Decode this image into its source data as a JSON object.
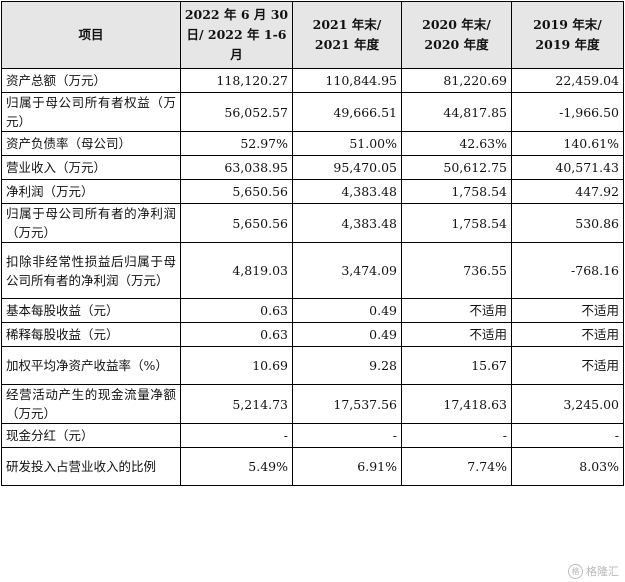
{
  "header": [
    "项目",
    "2022 年 6 月 30 日/ 2022 年 1-6 月",
    "2021 年末/ 2021 年度",
    "2020 年末/ 2020 年度",
    "2019 年末/ 2019 年度"
  ],
  "rows": [
    {
      "label": "资产总额（万元）",
      "values": [
        "118,120.27",
        "110,844.95",
        "81,220.69",
        "22,459.04"
      ]
    },
    {
      "label": "归属于母公司所有者权益（万元）",
      "values": [
        "56,052.57",
        "49,666.51",
        "44,817.85",
        "-1,966.50"
      ]
    },
    {
      "label": "资产负债率（母公司）",
      "values": [
        "52.97%",
        "51.00%",
        "42.63%",
        "140.61%"
      ]
    },
    {
      "label": "营业收入（万元）",
      "values": [
        "63,038.95",
        "95,470.05",
        "50,612.75",
        "40,571.43"
      ]
    },
    {
      "label": "净利润（万元）",
      "values": [
        "5,650.56",
        "4,383.48",
        "1,758.54",
        "447.92"
      ]
    },
    {
      "label": "归属于母公司所有者的净利润（万元）",
      "values": [
        "5,650.56",
        "4,383.48",
        "1,758.54",
        "530.86"
      ]
    },
    {
      "label": "扣除非经常性损益后归属于母公司所有者的净利润（万元）",
      "values": [
        "4,819.03",
        "3,474.09",
        "736.55",
        "-768.16"
      ]
    },
    {
      "label": "基本每股收益（元）",
      "values": [
        "0.63",
        "0.49",
        "不适用",
        "不适用"
      ]
    },
    {
      "label": "稀释每股收益（元）",
      "values": [
        "0.63",
        "0.49",
        "不适用",
        "不适用"
      ]
    },
    {
      "label": "加权平均净资产收益率（%）",
      "values": [
        "10.69",
        "9.28",
        "15.67",
        "不适用"
      ]
    },
    {
      "label": "经营活动产生的现金流量净额（万元）",
      "values": [
        "5,214.73",
        "17,537.56",
        "17,418.63",
        "3,245.00"
      ]
    },
    {
      "label": "现金分红（元）",
      "values": [
        "-",
        "-",
        "-",
        "-"
      ]
    },
    {
      "label": "研发投入占营业收入的比例",
      "values": [
        "5.49%",
        "6.91%",
        "7.74%",
        "8.03%"
      ]
    }
  ],
  "watermark": {
    "logo": "格",
    "text": "格隆汇"
  }
}
